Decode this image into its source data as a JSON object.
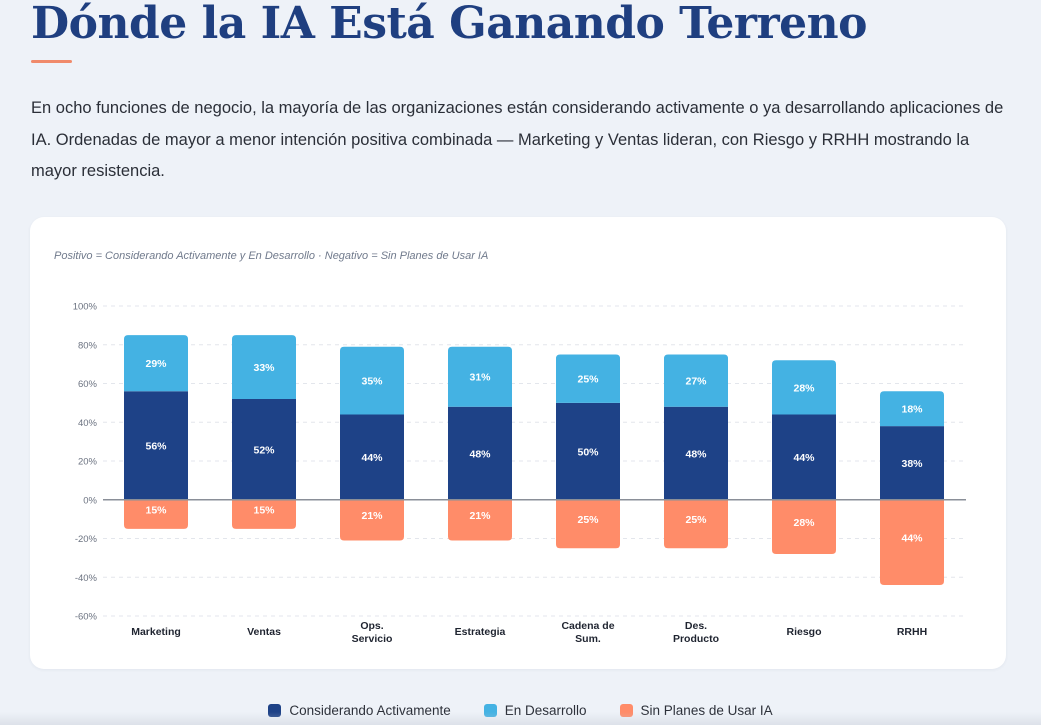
{
  "header": {
    "title": "Dónde la IA Está Ganando Terreno",
    "intro": "En ocho funciones de negocio, la mayoría de las organizaciones están considerando activamente o ya desarrollando aplicaciones de IA. Ordenadas de mayor a menor intención positiva combinada — Marketing y Ventas lideran, con Riesgo y RRHH mostrando la mayor resistencia."
  },
  "chart_note": "Positivo = Considerando Activamente y En Desarrollo · Negativo = Sin Planes de Usar IA",
  "colors": {
    "considering": "#1e4287",
    "developing": "#44b2e3",
    "no_plans": "#ff8c69",
    "axis_text": "#6b7280",
    "zero_line": "#8a8f98",
    "grid": "#e3e6ec"
  },
  "legend": [
    {
      "label": "Considerando Activamente",
      "color": "#1e4287"
    },
    {
      "label": "En Desarrollo",
      "color": "#44b2e3"
    },
    {
      "label": "Sin Planes de Usar IA",
      "color": "#ff8c69"
    }
  ],
  "chart_data": {
    "type": "bar",
    "stacked": true,
    "categories": [
      [
        "Marketing"
      ],
      [
        "Ventas"
      ],
      [
        "Ops.",
        "Servicio"
      ],
      [
        "Estrategia"
      ],
      [
        "Cadena de",
        "Sum."
      ],
      [
        "Des.",
        "Producto"
      ],
      [
        "Riesgo"
      ],
      [
        "RRHH"
      ]
    ],
    "series": [
      {
        "name": "Considerando Activamente",
        "values": [
          56,
          52,
          44,
          48,
          50,
          48,
          44,
          38
        ]
      },
      {
        "name": "En Desarrollo",
        "values": [
          29,
          33,
          35,
          31,
          25,
          27,
          28,
          18
        ]
      },
      {
        "name": "Sin Planes de Usar IA",
        "values": [
          -15,
          -15,
          -21,
          -21,
          -25,
          -25,
          -28,
          -44
        ]
      }
    ],
    "yticks": [
      "100%",
      "80%",
      "60%",
      "40%",
      "20%",
      "0%",
      "-20%",
      "-40%",
      "-60%"
    ],
    "ylim": [
      -60,
      100
    ],
    "grid": true,
    "legend_position": "bottom"
  }
}
